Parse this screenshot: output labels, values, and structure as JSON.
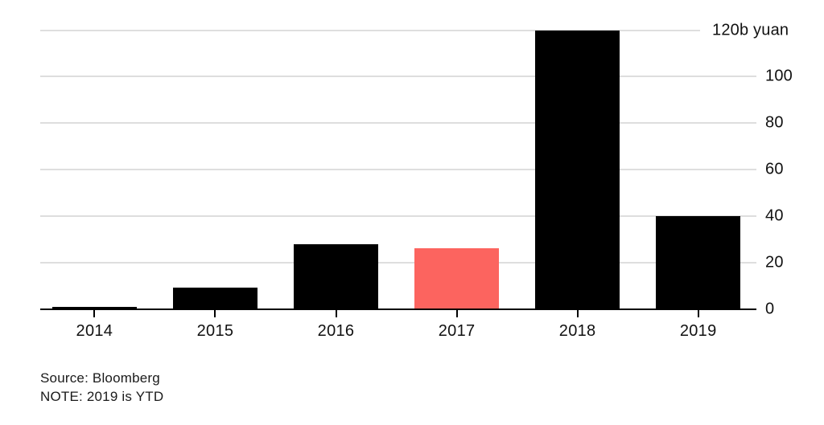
{
  "chart_data": {
    "type": "bar",
    "title": "",
    "categories": [
      "2014",
      "2015",
      "2016",
      "2017",
      "2018",
      "2019"
    ],
    "values": [
      1,
      9,
      28,
      26,
      120,
      40
    ],
    "highlight_index": 3,
    "highlight_category": "2017",
    "xlabel": "",
    "ylabel": "",
    "unit_top_label": "120b yuan",
    "yticks": [
      0,
      20,
      40,
      60,
      80,
      100,
      120
    ],
    "ylim": [
      0,
      120
    ],
    "grid": true,
    "y_axis_side": "right",
    "legend": "none",
    "colors": {
      "bar": "#000000",
      "highlight": "#fc645f",
      "grid": "#dedede",
      "axis": "#000000",
      "text": "#111111"
    },
    "source": "Source: Bloomberg",
    "note": "NOTE: 2019 is YTD"
  }
}
